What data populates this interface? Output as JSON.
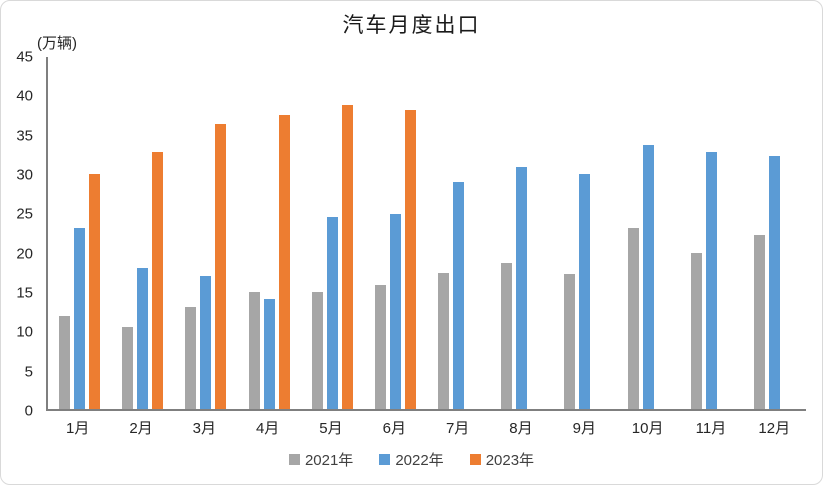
{
  "frame": {
    "title": "汽车月度出口",
    "unit_label": "(万辆)"
  },
  "chart_data": {
    "type": "bar",
    "title": "汽车月度出口",
    "ylabel": "(万辆)",
    "xlabel": "",
    "categories": [
      "1月",
      "2月",
      "3月",
      "4月",
      "5月",
      "6月",
      "7月",
      "8月",
      "9月",
      "10月",
      "11月",
      "12月"
    ],
    "series": [
      {
        "name": "2021年",
        "color": "#A6A6A6",
        "values": [
          11.9,
          10.5,
          13.1,
          15.0,
          15.0,
          15.8,
          17.4,
          18.7,
          17.3,
          23.1,
          20.0,
          22.3
        ]
      },
      {
        "name": "2022年",
        "color": "#5B9BD5",
        "values": [
          23.1,
          18.0,
          17.0,
          14.1,
          24.5,
          24.9,
          29.0,
          30.9,
          30.1,
          33.7,
          32.9,
          32.4
        ]
      },
      {
        "name": "2023年",
        "color": "#ED7D31",
        "values": [
          30.1,
          32.9,
          36.4,
          37.6,
          38.9,
          38.2,
          null,
          null,
          null,
          null,
          null,
          null
        ]
      }
    ],
    "ylim": [
      0,
      45
    ],
    "y_ticks": [
      0,
      5,
      10,
      15,
      20,
      25,
      30,
      35,
      40,
      45
    ],
    "grid": false,
    "legend_position": "bottom"
  }
}
